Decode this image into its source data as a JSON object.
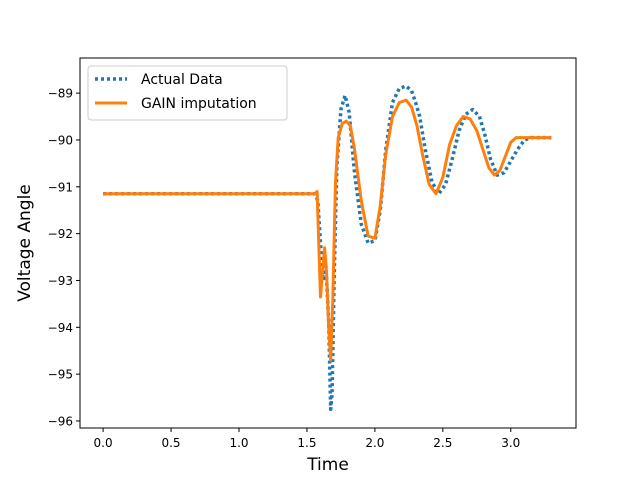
{
  "chart_data": {
    "type": "line",
    "title": "",
    "xlabel": "Time",
    "ylabel": "Voltage Angle",
    "xlim": [
      -0.17,
      3.48
    ],
    "ylim": [
      -96.15,
      -88.25
    ],
    "xticks": [
      0.0,
      0.5,
      1.0,
      1.5,
      2.0,
      2.5,
      3.0
    ],
    "xtick_labels": [
      "0.0",
      "0.5",
      "1.0",
      "1.5",
      "2.0",
      "2.5",
      "3.0"
    ],
    "yticks": [
      -96,
      -95,
      -94,
      -93,
      -92,
      -91,
      -90,
      -89
    ],
    "ytick_labels": [
      "−96",
      "−95",
      "−94",
      "−93",
      "−92",
      "−91",
      "−90",
      "−89"
    ],
    "grid": false,
    "legend_position": "top-left",
    "series": [
      {
        "name": "Actual Data",
        "color": "#1f77b4",
        "style": "dotted",
        "x": [
          0.0,
          1.56,
          1.58,
          1.6,
          1.62,
          1.64,
          1.66,
          1.675,
          1.685,
          1.7,
          1.72,
          1.75,
          1.78,
          1.81,
          1.85,
          1.9,
          1.95,
          2.0,
          2.04,
          2.08,
          2.13,
          2.18,
          2.23,
          2.27,
          2.3,
          2.33,
          2.37,
          2.42,
          2.47,
          2.52,
          2.57,
          2.62,
          2.67,
          2.72,
          2.77,
          2.81,
          2.85,
          2.9,
          2.95,
          3.0,
          3.05,
          3.1,
          3.15,
          3.2,
          3.25,
          3.3
        ],
        "y": [
          -91.15,
          -91.15,
          -91.3,
          -92.2,
          -93.0,
          -92.7,
          -93.9,
          -95.75,
          -95.4,
          -93.0,
          -90.6,
          -89.35,
          -89.05,
          -89.4,
          -90.7,
          -91.8,
          -92.2,
          -92.15,
          -91.5,
          -90.2,
          -89.2,
          -88.9,
          -88.85,
          -88.95,
          -89.2,
          -89.5,
          -90.2,
          -90.9,
          -91.15,
          -90.95,
          -90.4,
          -89.8,
          -89.45,
          -89.35,
          -89.5,
          -89.9,
          -90.4,
          -90.75,
          -90.7,
          -90.45,
          -90.2,
          -90.0,
          -89.95,
          -89.95,
          -89.95,
          -89.95
        ]
      },
      {
        "name": "GAIN imputation",
        "color": "#ff7f0e",
        "style": "solid",
        "x": [
          0.0,
          1.56,
          1.575,
          1.59,
          1.6,
          1.615,
          1.63,
          1.645,
          1.66,
          1.675,
          1.69,
          1.71,
          1.73,
          1.76,
          1.79,
          1.82,
          1.85,
          1.9,
          1.95,
          2.0,
          2.04,
          2.08,
          2.13,
          2.18,
          2.23,
          2.27,
          2.31,
          2.35,
          2.4,
          2.45,
          2.5,
          2.55,
          2.6,
          2.65,
          2.7,
          2.75,
          2.8,
          2.84,
          2.88,
          2.92,
          2.96,
          3.0,
          3.04,
          3.08,
          3.12,
          3.16,
          3.2,
          3.25,
          3.3
        ],
        "y": [
          -91.15,
          -91.15,
          -91.1,
          -92.5,
          -93.35,
          -92.8,
          -92.3,
          -92.85,
          -94.0,
          -94.7,
          -93.4,
          -90.9,
          -89.95,
          -89.65,
          -89.6,
          -89.7,
          -90.2,
          -91.3,
          -92.05,
          -92.1,
          -91.4,
          -90.3,
          -89.5,
          -89.2,
          -89.15,
          -89.3,
          -89.7,
          -90.3,
          -90.95,
          -91.15,
          -90.8,
          -90.1,
          -89.7,
          -89.5,
          -89.55,
          -89.8,
          -90.25,
          -90.6,
          -90.75,
          -90.65,
          -90.35,
          -90.05,
          -89.95,
          -89.95,
          -89.95,
          -89.95,
          -89.95,
          -89.95,
          -89.95
        ]
      }
    ]
  }
}
